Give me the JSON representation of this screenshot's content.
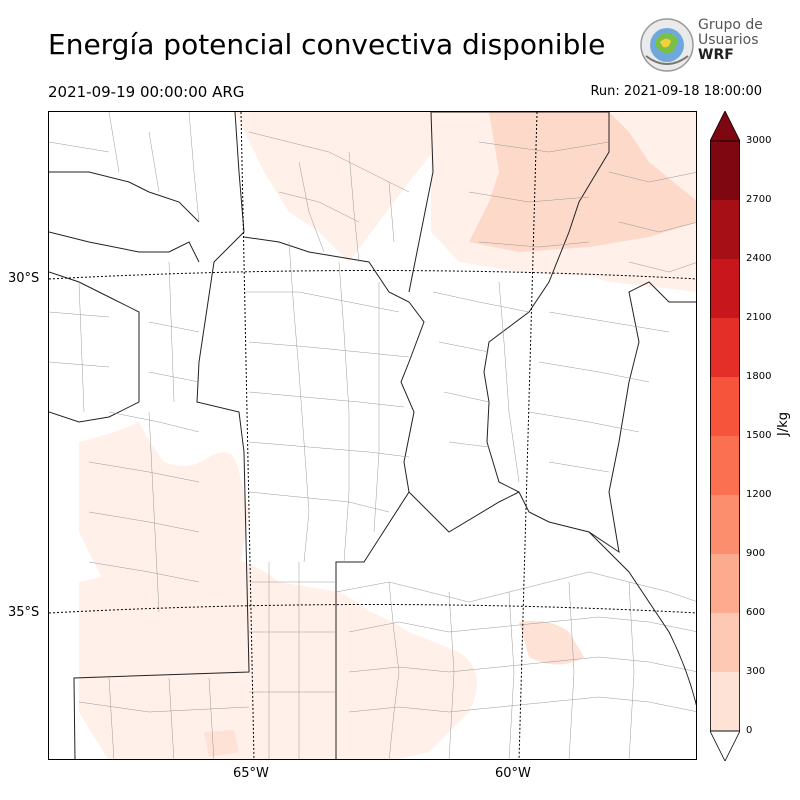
{
  "header": {
    "title": "Energía potencial convectiva disponible",
    "valid_time": "2021-09-19 00:00:00 ARG",
    "run_time": "Run: 2021-09-18 18:00:00"
  },
  "logo": {
    "line1": "Grupo de",
    "line2": "Usuarios",
    "line3": "WRF"
  },
  "map": {
    "lat_labels": [
      "30°S",
      "35°S"
    ],
    "lon_labels": [
      "65°W",
      "60°W"
    ]
  },
  "colorbar": {
    "unit": "J/kg",
    "ticks": [
      "3000",
      "2700",
      "2400",
      "2100",
      "1800",
      "1500",
      "1200",
      "900",
      "600",
      "300",
      "0"
    ],
    "colors": [
      "#7f0712",
      "#a50f15",
      "#c8171c",
      "#e32f27",
      "#f6553c",
      "#fb7050",
      "#fc8d6d",
      "#fcab8f",
      "#fdc9b4",
      "#fee2d5",
      "#fff0e9"
    ],
    "accent_color": "#fc8d6d"
  }
}
